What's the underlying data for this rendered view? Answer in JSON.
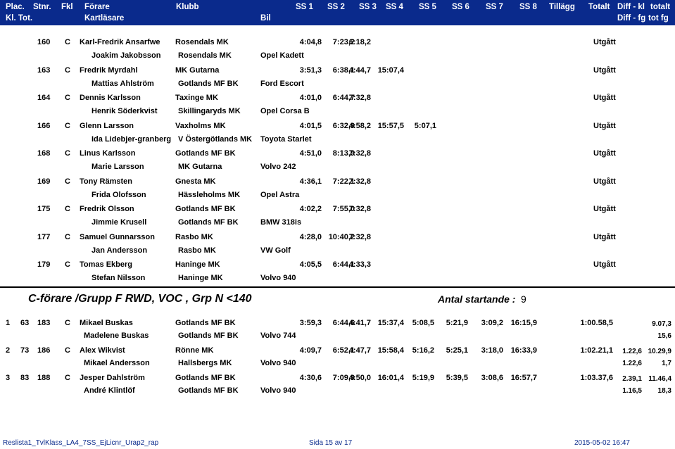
{
  "header": {
    "row1": [
      "Plac.",
      "Stnr.",
      "Fkl",
      "Förare",
      "Klubb",
      "SS 1",
      "SS 2",
      "SS 3",
      "SS 4",
      "SS 5",
      "SS 6",
      "SS 7",
      "SS 8",
      "Tillägg",
      "Totalt",
      "Diff - kl",
      "totalt"
    ],
    "row2": [
      "Kl. Tot.",
      "Kartläsare",
      "Bil",
      "Diff - fg",
      "tot fg"
    ]
  },
  "entries": [
    {
      "stnr": "160",
      "fkl": "C",
      "driver": "Karl-Fredrik Ansarfwe",
      "club1": "Rosendals MK",
      "navigator": "Joakim Jakobsson",
      "club2": "Rosendals MK",
      "car": "Opel Kadett",
      "ss": [
        "4:04,8",
        "7:23,2",
        "6:18,2"
      ],
      "status": "Utgått"
    },
    {
      "stnr": "163",
      "fkl": "C",
      "driver": "Fredrik Myrdahl",
      "club1": "MK Gutarna",
      "navigator": "Mattias Ahlström",
      "club2": "Gotlands MF BK",
      "car": "Ford Escort",
      "ss": [
        "3:51,3",
        "6:38,1",
        "4:44,7",
        "15:07,4"
      ],
      "status": "Utgått"
    },
    {
      "stnr": "164",
      "fkl": "C",
      "driver": "Dennis Karlsson",
      "club1": "Taxinge MK",
      "navigator": "Henrik Söderkvist",
      "club2": "Skillingaryds MK",
      "car": "Opel Corsa B",
      "ss": [
        "4:01,0",
        "6:44,7",
        "7:32,8"
      ],
      "status": "Utgått"
    },
    {
      "stnr": "166",
      "fkl": "C",
      "driver": "Glenn Larsson",
      "club1": "Vaxholms MK",
      "navigator": "Ida Lidebjer-granberg",
      "club2": "V Östergötlands MK",
      "car": "Toyota Starlet",
      "ss": [
        "4:01,5",
        "6:32,9",
        "4:58,2",
        "15:57,5",
        "5:07,1"
      ],
      "status": "Utgått"
    },
    {
      "stnr": "168",
      "fkl": "C",
      "driver": "Linus Karlsson",
      "club1": "Gotlands MF BK",
      "navigator": "Marie Larsson",
      "club2": "MK Gutarna",
      "car": "Volvo 242",
      "ss": [
        "4:51,0",
        "8:13,9",
        "7:32,8"
      ],
      "status": "Utgått"
    },
    {
      "stnr": "169",
      "fkl": "C",
      "driver": "Tony Rämsten",
      "club1": "Gnesta MK",
      "navigator": "Frida Olofsson",
      "club2": "Hässleholms MK",
      "car": "Opel Astra",
      "ss": [
        "4:36,1",
        "7:22,1",
        "7:32,8"
      ],
      "status": "Utgått"
    },
    {
      "stnr": "175",
      "fkl": "C",
      "driver": "Fredrik Olsson",
      "club1": "Gotlands MF BK",
      "navigator": "Jimmie Krusell",
      "club2": "Gotlands MF BK",
      "car": "BMW 318is",
      "ss": [
        "4:02,2",
        "7:55,0",
        "7:32,8"
      ],
      "status": "Utgått"
    },
    {
      "stnr": "177",
      "fkl": "C",
      "driver": "Samuel Gunnarsson",
      "club1": "Rasbo MK",
      "navigator": "Jan Andersson",
      "club2": "Rasbo MK",
      "car": "VW Golf",
      "ss": [
        "4:28,0",
        "10:40,2",
        "7:32,8"
      ],
      "status": "Utgått"
    },
    {
      "stnr": "179",
      "fkl": "C",
      "driver": "Tomas Ekberg",
      "club1": "Haninge MK",
      "navigator": "Stefan Nilsson",
      "club2": "Haninge MK",
      "car": "Volvo 940",
      "ss": [
        "4:05,5",
        "6:44,1",
        "4:33,3"
      ],
      "status": "Utgått"
    }
  ],
  "section": {
    "title": "C-förare /Grupp F RWD, VOC , Grp N <140",
    "starters_label": "Antal startande :",
    "starters_count": "9"
  },
  "results": [
    {
      "plac": "1",
      "tot": "63",
      "stnr": "183",
      "fkl": "C",
      "driver": "Mikael Buskas",
      "club1": "Gotlands MF BK",
      "navigator": "Madelene Buskas",
      "club2": "Gotlands MF BK",
      "car": "Volvo 744",
      "ss": [
        "3:59,3",
        "6:44,6",
        "4:41,7",
        "15:37,4",
        "5:08,5",
        "5:21,9",
        "3:09,2",
        "16:15,9"
      ],
      "total": "1:00.58,5",
      "diff_kl": "",
      "diff_tot": "9.07,3",
      "diff_fg": "",
      "tot_fg": "15,6"
    },
    {
      "plac": "2",
      "tot": "73",
      "stnr": "186",
      "fkl": "C",
      "driver": "Alex Wikvist",
      "club1": "Rönne MK",
      "navigator": "Mikael Andersson",
      "club2": "Hallsbergs MK",
      "car": "Volvo 940",
      "ss": [
        "4:09,7",
        "6:52,1",
        "4:47,7",
        "15:58,4",
        "5:16,2",
        "5:25,1",
        "3:18,0",
        "16:33,9"
      ],
      "total": "1:02.21,1",
      "diff_kl": "1.22,6",
      "diff_tot": "10.29,9",
      "diff_fg": "1.22,6",
      "tot_fg": "1,7"
    },
    {
      "plac": "3",
      "tot": "83",
      "stnr": "188",
      "fkl": "C",
      "driver": "Jesper Dahlström",
      "club1": "Gotlands MF BK",
      "navigator": "André Klintlöf",
      "club2": "Gotlands MF BK",
      "car": "Volvo 940",
      "ss": [
        "4:30,6",
        "7:09,9",
        "4:50,0",
        "16:01,4",
        "5:19,9",
        "5:39,5",
        "3:08,6",
        "16:57,7"
      ],
      "total": "1:03.37,6",
      "diff_kl": "2.39,1",
      "diff_tot": "11.46,4",
      "diff_fg": "1.16,5",
      "tot_fg": "18,3"
    }
  ],
  "footer": {
    "filename": "Reslista1_TvlKlass_LA4_7SS_EjLicnr_Urap2_rap",
    "page": "Sida 15 av 17",
    "timestamp": "2015-05-02 16:47"
  },
  "colors": {
    "header_bg": "#0a2a8c",
    "header_text": "#ffffff",
    "footer_text": "#0a2a8c"
  }
}
